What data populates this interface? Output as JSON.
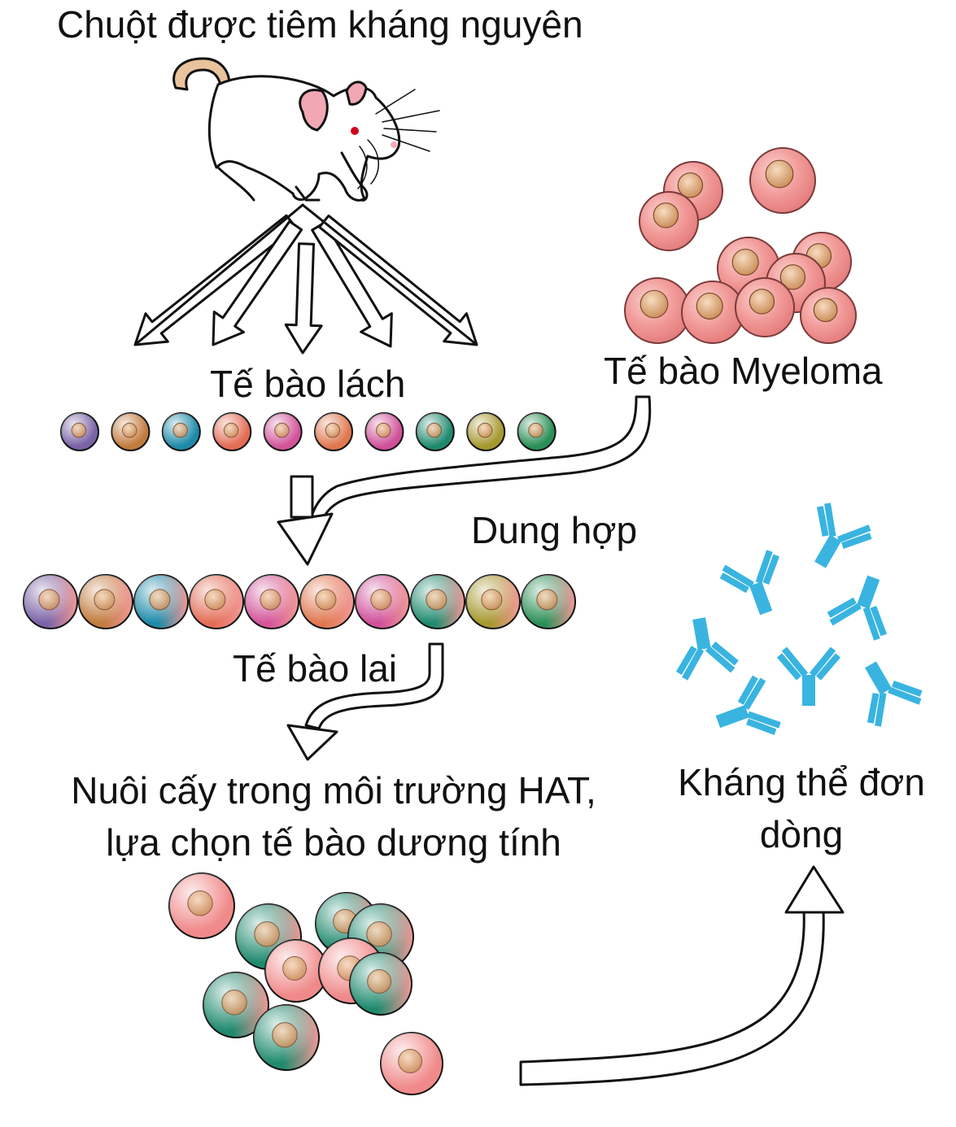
{
  "labels": {
    "mouse_title": "Chuột được tiêm kháng nguyên",
    "spleen_cells": "Tế bào lách",
    "myeloma_cells": "Tế bào Myeloma",
    "fusion": "Dung hợp",
    "hybrid_cells": "Tế bào lai",
    "culture_line1": "Nuôi cấy trong môi trường HAT,",
    "culture_line2": "lựa chọn tế bào dương tính",
    "antibody_line1": "Kháng thể đơn",
    "antibody_line2": "dòng"
  },
  "colors": {
    "spleen_cells": [
      "#7a62a6",
      "#c27b3e",
      "#1d8aa8",
      "#e36c55",
      "#d2549a",
      "#e0774f",
      "#d0509a",
      "#1f8a6e",
      "#a5982e",
      "#2a8f57"
    ],
    "myeloma": "#f08a8a",
    "myeloma_nucleus": "#d9a070",
    "antibody": "#39b4e0",
    "positive_clone": "#1f8a6e",
    "mouse_ear": "#f2a8b4",
    "mouse_tail": "#e8c39b",
    "mouse_eye": "#d0001c",
    "arrow_stroke": "#111111"
  },
  "icons": {
    "mouse": "mouse-icon",
    "cell": "cell-icon",
    "antibody": "antibody-icon",
    "arrow": "hollow-arrow"
  }
}
